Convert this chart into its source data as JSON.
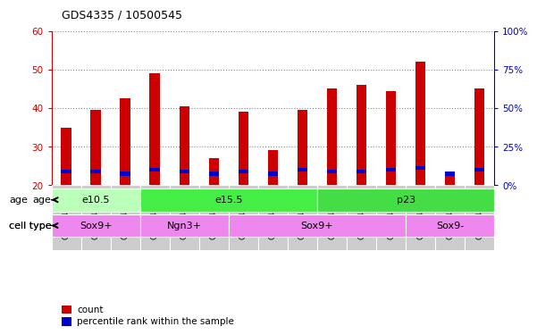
{
  "title": "GDS4335 / 10500545",
  "samples": [
    "GSM841156",
    "GSM841157",
    "GSM841158",
    "GSM841162",
    "GSM841163",
    "GSM841164",
    "GSM841159",
    "GSM841160",
    "GSM841161",
    "GSM841165",
    "GSM841166",
    "GSM841167",
    "GSM841168",
    "GSM841169",
    "GSM841170"
  ],
  "counts": [
    35,
    39.5,
    42.5,
    49,
    40.5,
    27,
    39,
    29,
    39.5,
    45,
    46,
    44.5,
    52,
    23,
    45
  ],
  "pct_rank": [
    23.5,
    23.5,
    23,
    24,
    23.5,
    23,
    23.5,
    23,
    24,
    23.5,
    23.5,
    24,
    24.5,
    23,
    24
  ],
  "bar_bottom": 20,
  "ylim_left": [
    20,
    60
  ],
  "ylim_right": [
    0,
    100
  ],
  "yticks_left": [
    20,
    30,
    40,
    50,
    60
  ],
  "yticks_right": [
    0,
    25,
    50,
    75,
    100
  ],
  "ytick_labels_right": [
    "0%",
    "25%",
    "50%",
    "75%",
    "100%"
  ],
  "count_color": "#cc0000",
  "pct_color": "#0000cc",
  "grid_color": "#888888",
  "bg_color": "#ffffff",
  "bar_width": 0.35,
  "age_groups": [
    {
      "label": "e10.5",
      "start": 0,
      "end": 3,
      "color": "#bbffbb"
    },
    {
      "label": "e15.5",
      "start": 3,
      "end": 9,
      "color": "#44ee44"
    },
    {
      "label": "p23",
      "start": 9,
      "end": 15,
      "color": "#44dd44"
    }
  ],
  "cell_groups": [
    {
      "label": "Sox9+",
      "start": 0,
      "end": 3,
      "color": "#ee88ee"
    },
    {
      "label": "Ngn3+",
      "start": 3,
      "end": 6,
      "color": "#ee88ee"
    },
    {
      "label": "Sox9+",
      "start": 6,
      "end": 12,
      "color": "#ee88ee"
    },
    {
      "label": "Sox9-",
      "start": 12,
      "end": 15,
      "color": "#ee88ee"
    }
  ],
  "legend_count_label": "count",
  "legend_pct_label": "percentile rank within the sample",
  "age_label": "age",
  "celltype_label": "cell type"
}
